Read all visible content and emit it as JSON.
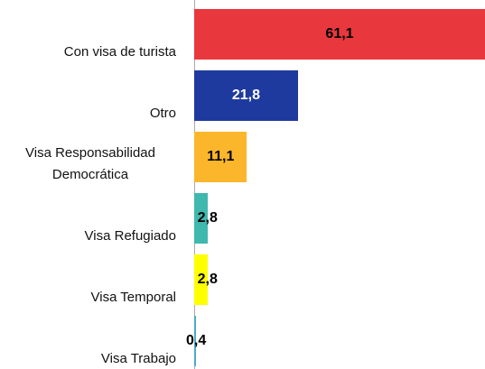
{
  "chart_data": {
    "type": "bar",
    "orientation": "horizontal",
    "categories": [
      "Con visa de turista",
      "Otro",
      "Visa Responsabilidad Democrática",
      "Visa Refugiado",
      "Visa Temporal",
      "Visa Trabajo"
    ],
    "values": [
      61.1,
      21.8,
      11.1,
      2.8,
      2.8,
      0.4
    ],
    "value_labels": [
      "61,1",
      "21,8",
      "11,1",
      "2,8",
      "2,8",
      "0,4"
    ],
    "colors": [
      "#e8383d",
      "#1f3a9e",
      "#fbb62c",
      "#3fb8ae",
      "#ffff00",
      "#4bacc6"
    ]
  }
}
